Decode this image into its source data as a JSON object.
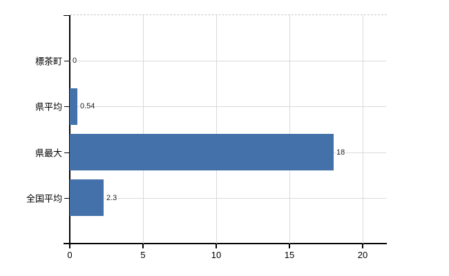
{
  "chart_data": {
    "type": "bar",
    "orientation": "horizontal",
    "title": "",
    "xlabel": "",
    "ylabel": "",
    "categories": [
      "標茶町",
      "県平均",
      "県最大",
      "全国平均"
    ],
    "values": [
      0,
      0.54,
      18,
      2.3
    ],
    "value_labels": [
      "0",
      "0.54",
      "18",
      "2.3"
    ],
    "x_ticks": [
      0,
      5,
      10,
      15,
      20
    ],
    "x_tick_labels": [
      "0",
      "5",
      "10",
      "15",
      "20"
    ],
    "xlim": [
      0,
      21.6
    ],
    "grid": true,
    "legend": "none",
    "colors": {
      "bar": "#4471A9",
      "gridline": "#d9d9d9",
      "plot_top_border_dashed": "#c8c8c8",
      "axis": "#000000",
      "text": "#000000",
      "background": "#ffffff"
    }
  }
}
